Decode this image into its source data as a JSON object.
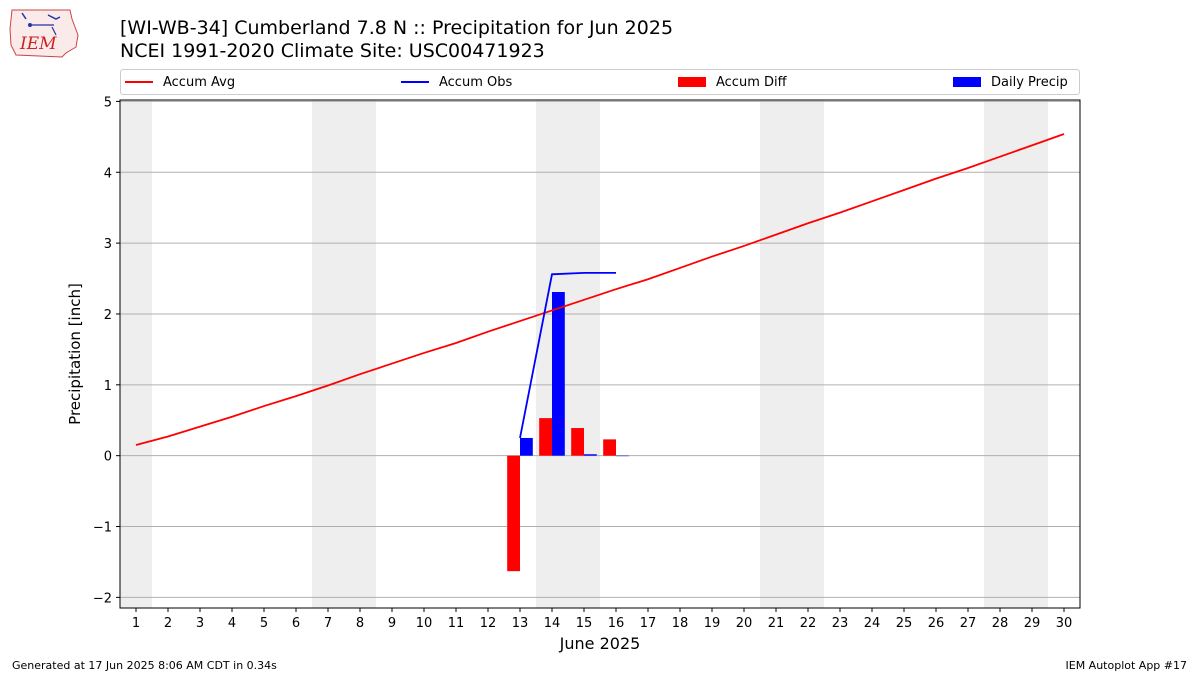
{
  "header": {
    "logo_text": "IEM",
    "title_line1": "[WI-WB-34] Cumberland 7.8 N :: Precipitation for Jun 2025",
    "title_line2": "NCEI 1991-2020 Climate Site: USC00471923"
  },
  "legend": {
    "items": [
      {
        "label": "Accum Avg",
        "kind": "line",
        "color": "#ff0000"
      },
      {
        "label": "Accum Obs",
        "kind": "line",
        "color": "#0000ff"
      },
      {
        "label": "Accum Diff",
        "kind": "bar",
        "color": "#ff0000"
      },
      {
        "label": "Daily Precip",
        "kind": "bar",
        "color": "#0000ff"
      }
    ]
  },
  "footer": {
    "generated": "Generated at 17 Jun 2025 8:06 AM CDT in 0.34s",
    "app": "IEM Autoplot App #17"
  },
  "chart_data": {
    "type": "bar",
    "xlabel": "June 2025",
    "ylabel": "Precipitation [inch]",
    "xlim": [
      0.5,
      30.5
    ],
    "ylim": [
      -2.15,
      5.02
    ],
    "x_ticks": [
      1,
      2,
      3,
      4,
      5,
      6,
      7,
      8,
      9,
      10,
      11,
      12,
      13,
      14,
      15,
      16,
      17,
      18,
      19,
      20,
      21,
      22,
      23,
      24,
      25,
      26,
      27,
      28,
      29,
      30
    ],
    "y_ticks": [
      -2,
      -1,
      0,
      1,
      2,
      3,
      4,
      5
    ],
    "grid": "horizontal",
    "weekend_shading": [
      [
        0.5,
        1.5
      ],
      [
        6.5,
        8.5
      ],
      [
        13.5,
        15.5
      ],
      [
        20.5,
        22.5
      ],
      [
        27.5,
        29.5
      ]
    ],
    "weekend_color": "#eeeeee",
    "series": [
      {
        "name": "Accum Avg",
        "type": "line",
        "color": "#ff0000",
        "x": [
          1,
          2,
          3,
          4,
          5,
          6,
          7,
          8,
          9,
          10,
          11,
          12,
          13,
          14,
          15,
          16,
          17,
          18,
          19,
          20,
          21,
          22,
          23,
          24,
          25,
          26,
          27,
          28,
          29,
          30
        ],
        "values": [
          0.15,
          0.27,
          0.41,
          0.55,
          0.7,
          0.84,
          0.99,
          1.15,
          1.3,
          1.45,
          1.59,
          1.75,
          1.9,
          2.05,
          2.2,
          2.35,
          2.49,
          2.65,
          2.81,
          2.96,
          3.12,
          3.28,
          3.43,
          3.59,
          3.75,
          3.91,
          4.06,
          4.22,
          4.38,
          4.54
        ]
      },
      {
        "name": "Accum Obs",
        "type": "line",
        "color": "#0000ff",
        "x": [
          13,
          14,
          15,
          16
        ],
        "values": [
          0.25,
          2.56,
          2.58,
          2.58
        ]
      },
      {
        "name": "Accum Diff",
        "type": "bar",
        "color": "#ff0000",
        "offset": -0.2,
        "x": [
          13,
          14,
          15,
          16
        ],
        "values": [
          -1.63,
          0.53,
          0.39,
          0.23
        ]
      },
      {
        "name": "Daily Precip",
        "type": "bar",
        "color": "#0000ff",
        "offset": 0.2,
        "x": [
          13,
          14,
          15,
          16
        ],
        "values": [
          0.25,
          2.31,
          0.02,
          0.0
        ]
      }
    ]
  }
}
